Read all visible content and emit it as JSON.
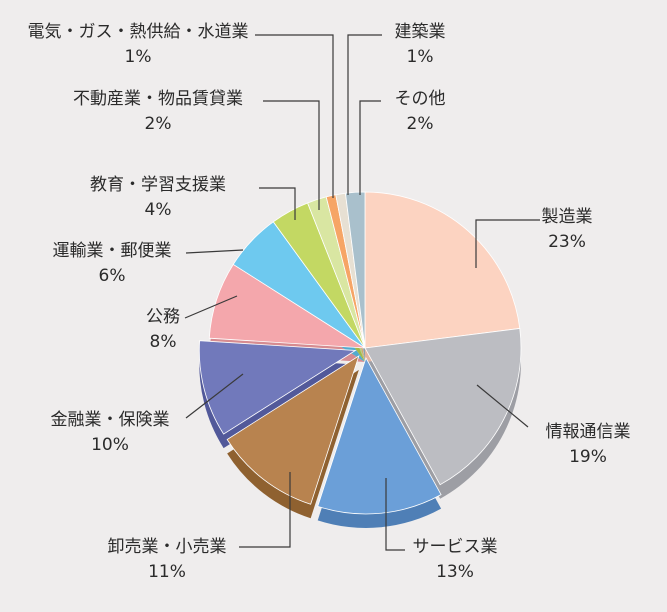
{
  "chart_data": {
    "type": "pie",
    "title": "",
    "start_angle_deg": 0,
    "direction": "clockwise",
    "slices": [
      {
        "label": "製造業",
        "value": 23,
        "display": "23%",
        "color": "#fcd3c1",
        "side": "#e2b3a0",
        "explode": false
      },
      {
        "label": "情報通信業",
        "value": 19,
        "display": "19%",
        "color": "#bcbdc2",
        "side": "#9d9ea4",
        "explode": false
      },
      {
        "label": "サービス業",
        "value": 13,
        "display": "13%",
        "color": "#6b9fd8",
        "side": "#4f7fb6",
        "explode": true
      },
      {
        "label": "卸売業・小売業",
        "value": 11,
        "display": "11%",
        "color": "#b8834f",
        "side": "#8f6130",
        "explode": true
      },
      {
        "label": "金融業・保険業",
        "value": 10,
        "display": "10%",
        "color": "#7179bb",
        "side": "#52599a",
        "explode": true
      },
      {
        "label": "公務",
        "value": 8,
        "display": "8%",
        "color": "#f4a7ac",
        "side": "#d68b90",
        "explode": false
      },
      {
        "label": "運輸業・郵便業",
        "value": 6,
        "display": "6%",
        "color": "#6ec9ef",
        "side": "#52aacf",
        "explode": false
      },
      {
        "label": "教育・学習支援業",
        "value": 4,
        "display": "4%",
        "color": "#c3d863",
        "side": "#a3b948",
        "explode": false
      },
      {
        "label": "不動産業・物品賃貸業",
        "value": 2,
        "display": "2%",
        "color": "#d9e6a2",
        "side": "#bac986",
        "explode": false
      },
      {
        "label": "電気・ガス・熱供給・水道業",
        "value": 1,
        "display": "1%",
        "color": "#f6a566",
        "side": "#d8874a",
        "explode": false
      },
      {
        "label": "建築業",
        "value": 1,
        "display": "1%",
        "color": "#e7e0d3",
        "side": "#c8c1b5",
        "explode": false
      },
      {
        "label": "その他",
        "value": 2,
        "display": "2%",
        "color": "#a9c0cc",
        "side": "#8aa1ad",
        "explode": false
      }
    ]
  }
}
